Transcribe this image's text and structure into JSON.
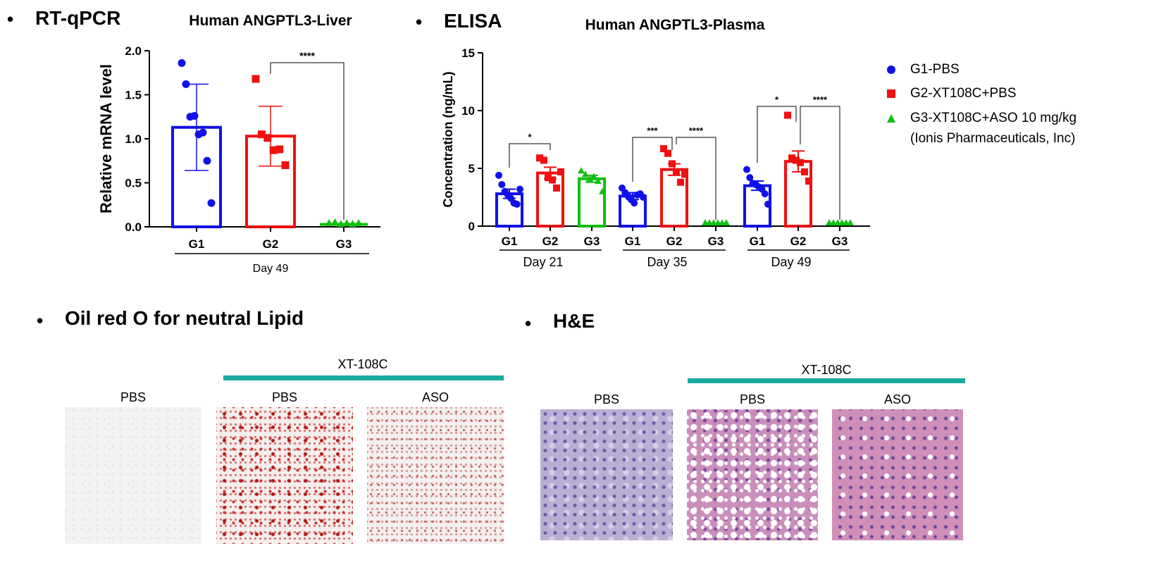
{
  "sections": {
    "rtqpcr": "RT-qPCR",
    "elisa": "ELISA",
    "oil": "Oil red O for neutral Lipid",
    "he": "H&E"
  },
  "bullet": "•",
  "colors": {
    "G1": "#1010e8",
    "G2": "#f01010",
    "G3": "#10c010",
    "teal": "#1aaa9f"
  },
  "legend": {
    "items": [
      {
        "label": "G1-PBS",
        "marker": "circle",
        "color": "#1010e8"
      },
      {
        "label": "G2-XT108C+PBS",
        "marker": "square",
        "color": "#f01010"
      },
      {
        "label": "G3-XT108C+ASO 10 mg/kg",
        "marker": "triangle",
        "color": "#10c010"
      }
    ],
    "sub": "(Ionis Pharmaceuticals, Inc)"
  },
  "chart_data": [
    {
      "type": "bar",
      "title": "Human ANGPTL3-Liver",
      "ylabel": "Relative mRNA level",
      "xlabel": "",
      "ylim": [
        0,
        2.0
      ],
      "yticks": [
        "0.0",
        "0.5",
        "1.0",
        "1.5",
        "2.0"
      ],
      "categories": [
        "G1",
        "G2",
        "G3"
      ],
      "group_label": "Day 49",
      "values": [
        1.13,
        1.03,
        0.02
      ],
      "errors": [
        0.49,
        0.34,
        0.01
      ],
      "points": [
        [
          1.86,
          1.62,
          1.25,
          1.26,
          1.05,
          1.07,
          0.75,
          0.27
        ],
        [
          1.68,
          1.05,
          1.01,
          0.87,
          0.88,
          0.7
        ],
        [
          0.02,
          0.03,
          0.01,
          0.02,
          0.01,
          0.02
        ]
      ],
      "significance": [
        {
          "from": 1,
          "to": 2,
          "label": "****"
        }
      ]
    },
    {
      "type": "bar",
      "title": "Human ANGPTL3-Plasma",
      "ylabel": "Concentration (ng/mL)",
      "xlabel": "",
      "ylim": [
        0,
        15
      ],
      "yticks": [
        "0",
        "5",
        "10",
        "15"
      ],
      "groups": [
        {
          "label": "Day 21",
          "categories": [
            "G1",
            "G2",
            "G3"
          ],
          "values": [
            2.8,
            4.6,
            4.1
          ],
          "errors": [
            0.4,
            0.5,
            0.3
          ],
          "points": [
            [
              4.4,
              3.6,
              3.0,
              2.7,
              2.4,
              2.0,
              1.9,
              3.2
            ],
            [
              5.9,
              5.7,
              4.2,
              4.0,
              3.3,
              4.7
            ],
            [
              4.8,
              4.5,
              4.1,
              4.3,
              3.9,
              3.0
            ]
          ],
          "significance": [
            {
              "from": 0,
              "to": 1,
              "label": "*"
            }
          ]
        },
        {
          "label": "Day 35",
          "categories": [
            "G1",
            "G2",
            "G3"
          ],
          "values": [
            2.6,
            4.9,
            0.3
          ],
          "errors": [
            0.3,
            0.5,
            0.0
          ],
          "points": [
            [
              3.3,
              2.9,
              2.6,
              2.3,
              2.0,
              2.7,
              2.8,
              2.5
            ],
            [
              6.7,
              6.3,
              5.4,
              4.7,
              3.8,
              4.5
            ],
            [
              0.3,
              0.3,
              0.3,
              0.3,
              0.3,
              0.3
            ]
          ],
          "significance": [
            {
              "from": 0,
              "to": 1,
              "label": "***"
            },
            {
              "from": 1,
              "to": 2,
              "label": "****"
            }
          ]
        },
        {
          "label": "Day 49",
          "categories": [
            "G1",
            "G2",
            "G3"
          ],
          "values": [
            3.5,
            5.6,
            0.3
          ],
          "errors": [
            0.4,
            0.9,
            0.0
          ],
          "points": [
            [
              4.9,
              4.2,
              3.7,
              3.6,
              3.4,
              3.2,
              2.8,
              1.9
            ],
            [
              9.6,
              5.9,
              5.7,
              5.5,
              4.7,
              3.9
            ],
            [
              0.3,
              0.3,
              0.3,
              0.3,
              0.3,
              0.3
            ]
          ],
          "significance": [
            {
              "from": 0,
              "to": 1,
              "label": "*"
            },
            {
              "from": 1,
              "to": 2,
              "label": "****"
            }
          ]
        }
      ]
    }
  ],
  "oil_panels": {
    "header": "XT-108C",
    "labels": [
      "PBS",
      "PBS",
      "ASO"
    ]
  },
  "he_panels": {
    "header": "XT-108C",
    "labels": [
      "PBS",
      "PBS",
      "ASO"
    ]
  }
}
